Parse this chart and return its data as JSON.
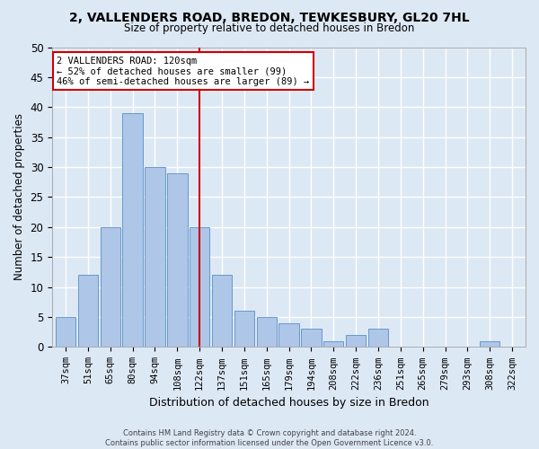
{
  "title": "2, VALLENDERS ROAD, BREDON, TEWKESBURY, GL20 7HL",
  "subtitle": "Size of property relative to detached houses in Bredon",
  "xlabel": "Distribution of detached houses by size in Bredon",
  "ylabel": "Number of detached properties",
  "categories": [
    "37sqm",
    "51sqm",
    "65sqm",
    "80sqm",
    "94sqm",
    "108sqm",
    "122sqm",
    "137sqm",
    "151sqm",
    "165sqm",
    "179sqm",
    "194sqm",
    "208sqm",
    "222sqm",
    "236sqm",
    "251sqm",
    "265sqm",
    "279sqm",
    "293sqm",
    "308sqm",
    "322sqm"
  ],
  "values": [
    5,
    12,
    20,
    39,
    30,
    29,
    20,
    12,
    6,
    5,
    4,
    3,
    1,
    2,
    3,
    0,
    0,
    0,
    0,
    1,
    0
  ],
  "bar_color": "#aec6e8",
  "bar_edgecolor": "#5a8fc0",
  "vline_index": 6,
  "vline_color": "#cc0000",
  "annotation_text": "2 VALLENDERS ROAD: 120sqm\n← 52% of detached houses are smaller (99)\n46% of semi-detached houses are larger (89) →",
  "annotation_box_color": "#ffffff",
  "annotation_box_edgecolor": "#cc0000",
  "ylim": [
    0,
    50
  ],
  "yticks": [
    0,
    5,
    10,
    15,
    20,
    25,
    30,
    35,
    40,
    45,
    50
  ],
  "footnote": "Contains HM Land Registry data © Crown copyright and database right 2024.\nContains public sector information licensed under the Open Government Licence v3.0.",
  "bg_color": "#dde8f5",
  "grid_color": "#ffffff"
}
